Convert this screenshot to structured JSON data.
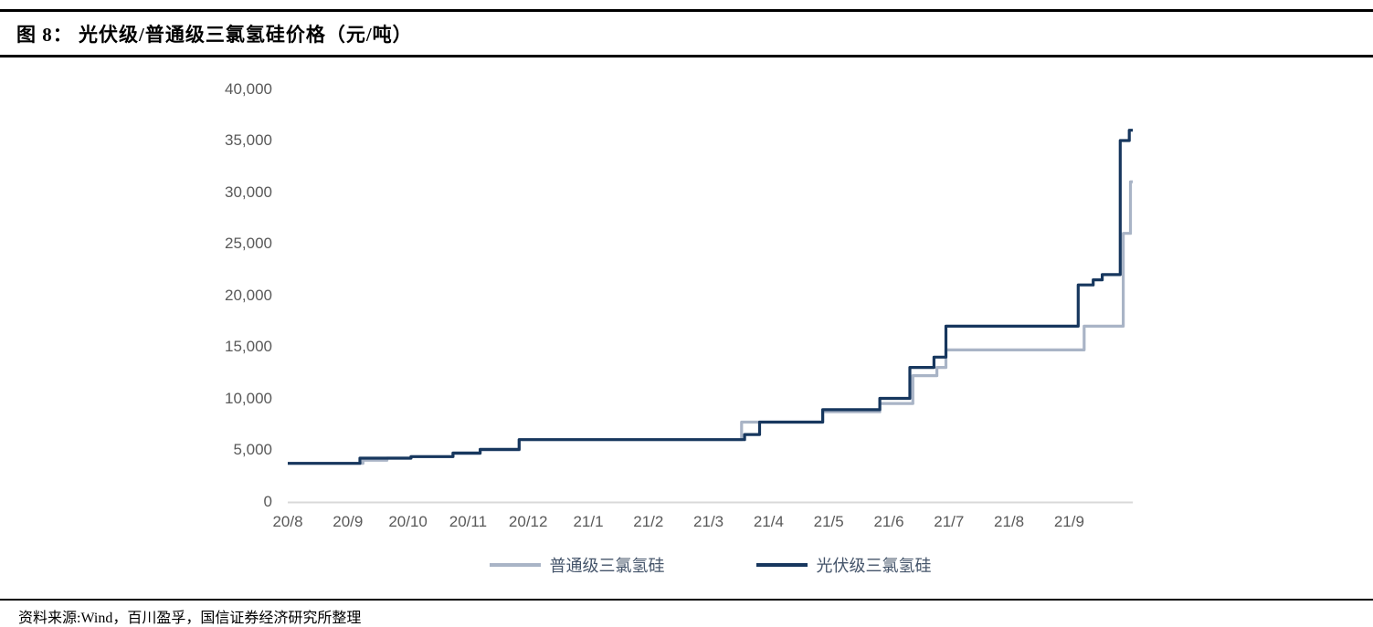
{
  "header": {
    "title": "图 8：  光伏级/普通级三氯氢硅价格（元/吨）"
  },
  "footer": {
    "source": "资料来源:Wind，百川盈孚，国信证券经济研究所整理"
  },
  "chart_data": {
    "type": "line",
    "line_style": "step-after",
    "title": "光伏级/普通级三氯氢硅价格（元/吨）",
    "xlabel": "",
    "ylabel": "",
    "ylim": [
      0,
      40000
    ],
    "grid": false,
    "legend_position": "bottom-center",
    "axis_color": "#d9d9d9",
    "tick_label_color": "#595959",
    "y_ticks": [
      0,
      5000,
      10000,
      15000,
      20000,
      25000,
      30000,
      35000,
      40000
    ],
    "y_tick_labels": [
      "0",
      "5,000",
      "10,000",
      "15,000",
      "20,000",
      "25,000",
      "30,000",
      "35,000",
      "40,000"
    ],
    "x_tick_labels": [
      "20/8",
      "20/9",
      "20/10",
      "20/11",
      "20/12",
      "21/1",
      "21/2",
      "21/3",
      "21/4",
      "21/5",
      "21/6",
      "21/7",
      "21/8",
      "21/9"
    ],
    "x_unit": "months_after_2020_08",
    "x_end_month": 14.06,
    "points_format": "[month_offset_from_20/8, price_yuan_per_ton]",
    "series": [
      {
        "name": "普通级三氯氢硅",
        "color": "#a9b4c6",
        "points": [
          [
            0,
            3700
          ],
          [
            1.25,
            4000
          ],
          [
            1.65,
            4200
          ],
          [
            2.05,
            4350
          ],
          [
            2.75,
            4650
          ],
          [
            3.2,
            5000
          ],
          [
            3.85,
            6000
          ],
          [
            7.55,
            7700
          ],
          [
            8.9,
            8700
          ],
          [
            9.85,
            9500
          ],
          [
            10.4,
            12200
          ],
          [
            10.8,
            13000
          ],
          [
            10.95,
            14700
          ],
          [
            13.25,
            17000
          ],
          [
            13.9,
            26000
          ],
          [
            14.02,
            31000
          ]
        ]
      },
      {
        "name": "光伏级三氯氢硅",
        "color": "#17375e",
        "points": [
          [
            0,
            3700
          ],
          [
            1.2,
            4200
          ],
          [
            2.05,
            4350
          ],
          [
            2.75,
            4700
          ],
          [
            3.2,
            5050
          ],
          [
            3.85,
            6000
          ],
          [
            7.6,
            6500
          ],
          [
            7.85,
            7700
          ],
          [
            8.9,
            8900
          ],
          [
            9.85,
            10000
          ],
          [
            10.35,
            13000
          ],
          [
            10.75,
            14000
          ],
          [
            10.95,
            17000
          ],
          [
            13.15,
            21000
          ],
          [
            13.4,
            21500
          ],
          [
            13.55,
            22000
          ],
          [
            13.85,
            35000
          ],
          [
            14.0,
            36000
          ]
        ]
      }
    ]
  }
}
